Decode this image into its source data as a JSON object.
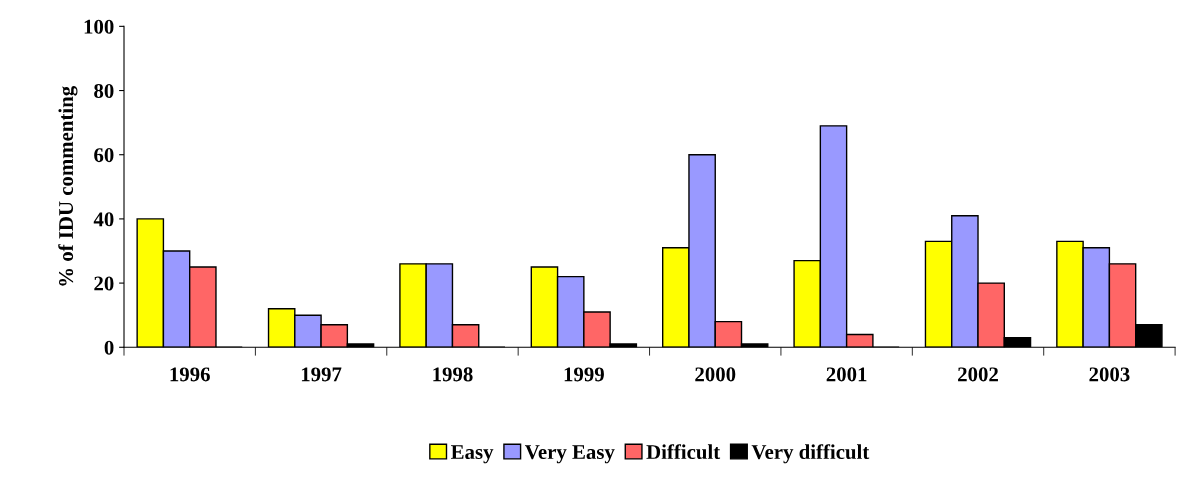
{
  "chart_data": {
    "type": "bar",
    "ylabel": "% of IDU commenting",
    "categories": [
      "1996",
      "1997",
      "1998",
      "1999",
      "2000",
      "2001",
      "2002",
      "2003"
    ],
    "series": [
      {
        "name": "Easy",
        "color": "#ffff00",
        "values": [
          40,
          12,
          26,
          25,
          31,
          27,
          33,
          33
        ]
      },
      {
        "name": "Very Easy",
        "color": "#9999ff",
        "values": [
          30,
          10,
          26,
          22,
          60,
          69,
          41,
          31
        ]
      },
      {
        "name": "Difficult",
        "color": "#ff6666",
        "values": [
          25,
          7,
          7,
          11,
          8,
          4,
          20,
          26
        ]
      },
      {
        "name": "Very difficult",
        "color": "#000000",
        "values": [
          0,
          1,
          0,
          1,
          1,
          0,
          3,
          7
        ]
      }
    ],
    "ylim": [
      0,
      100
    ],
    "yticks": [
      0,
      20,
      40,
      60,
      80,
      100
    ],
    "grid": false,
    "legend": "bottom"
  }
}
